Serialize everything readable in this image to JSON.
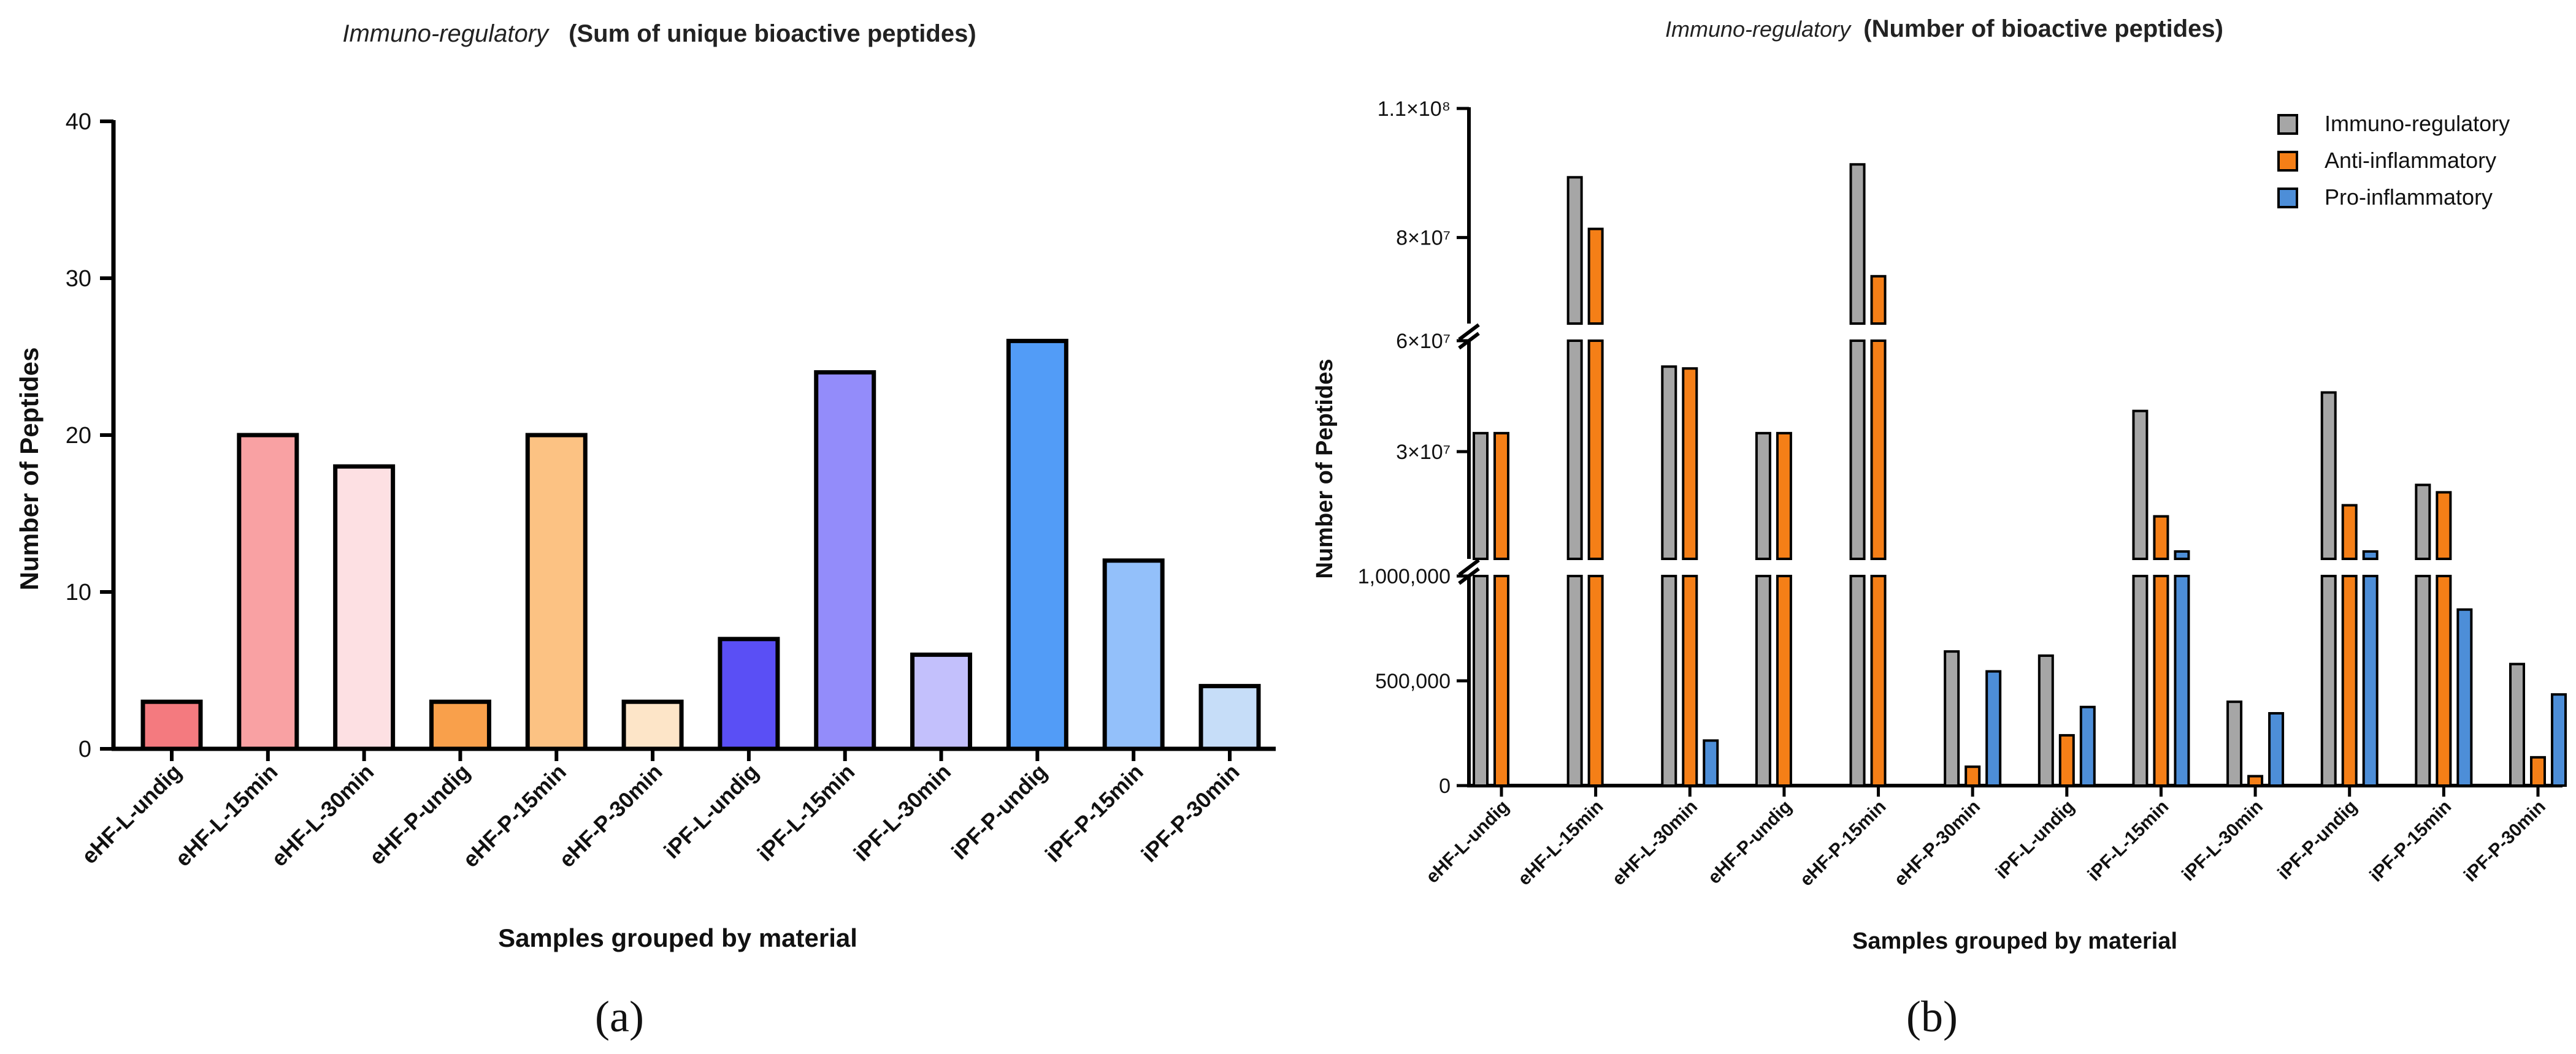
{
  "chart_data": [
    {
      "type": "bar",
      "panel_label": "(a)",
      "title_italic": "Immuno-regulatory",
      "title_bold": "(Sum of unique bioactive peptides)",
      "xlabel": "Samples grouped by material",
      "ylabel": "Number of Peptides",
      "ylim": [
        0,
        40
      ],
      "yticks": [
        "0",
        "10",
        "20",
        "30",
        "40"
      ],
      "categories": [
        "eHF-L-undig",
        "eHF-L-15min",
        "eHF-L-30min",
        "eHF-P-undig",
        "eHF-P-15min",
        "eHF-P-30min",
        "iPF-L-undig",
        "iPF-L-15min",
        "iPF-L-30min",
        "iPF-P-undig",
        "iPF-P-15min",
        "iPF-P-30min"
      ],
      "values": [
        3,
        20,
        18,
        3,
        20,
        3,
        7,
        24,
        6,
        26,
        12,
        4
      ],
      "colors": [
        "#f47a7f",
        "#f9a1a3",
        "#fde0e3",
        "#f9a04b",
        "#fcc283",
        "#fde5c8",
        "#5a4ff5",
        "#938cfa",
        "#c3c0fc",
        "#529cf7",
        "#93c0fa",
        "#c6ddf8"
      ],
      "grid": false
    },
    {
      "type": "bar",
      "panel_label": "(b)",
      "title_italic": "Immuno-regulatory",
      "title_bold": "(Number of bioactive peptides)",
      "xlabel": "Samples grouped by material",
      "ylabel": "Number of Peptides",
      "y_axis": "broken",
      "segments": [
        {
          "range": [
            0,
            1000000
          ],
          "ticks": [
            "0",
            "500,000",
            "1,000,000"
          ]
        },
        {
          "range": [
            1000000,
            60000000
          ],
          "ticks": [
            "3×10⁷",
            "6×10⁷"
          ]
        },
        {
          "range": [
            60000000,
            110000000
          ],
          "ticks": [
            "8×10⁷",
            "1.1×10⁸"
          ]
        }
      ],
      "categories": [
        "eHF-L-undig",
        "eHF-L-15min",
        "eHF-L-30min",
        "eHF-P-undig",
        "eHF-P-15min",
        "eHF-P-30min",
        "iPF-L-undig",
        "iPF-L-15min",
        "iPF-L-30min",
        "iPF-P-undig",
        "iPF-P-15min",
        "iPF-P-30min"
      ],
      "series": [
        {
          "name": "Immuno-regulatory",
          "color": "#a6a6a6",
          "values": [
            35000000,
            94000000,
            53000000,
            35000000,
            97000000,
            640000,
            620000,
            41000000,
            400000,
            46000000,
            21000000,
            580000
          ]
        },
        {
          "name": "Anti-inflammatory",
          "color": "#f57f17",
          "values": [
            35000000,
            82000000,
            52500000,
            35000000,
            71000000,
            90000,
            240000,
            12500000,
            45000,
            15500000,
            19000000,
            135000
          ]
        },
        {
          "name": "Pro-inflammatory",
          "color": "#4d8ed8",
          "values": [
            0,
            0,
            215000,
            0,
            0,
            545000,
            375000,
            3000000,
            345000,
            3000000,
            840000,
            435000
          ]
        }
      ],
      "legend_position": "top-right",
      "grid": false
    }
  ]
}
